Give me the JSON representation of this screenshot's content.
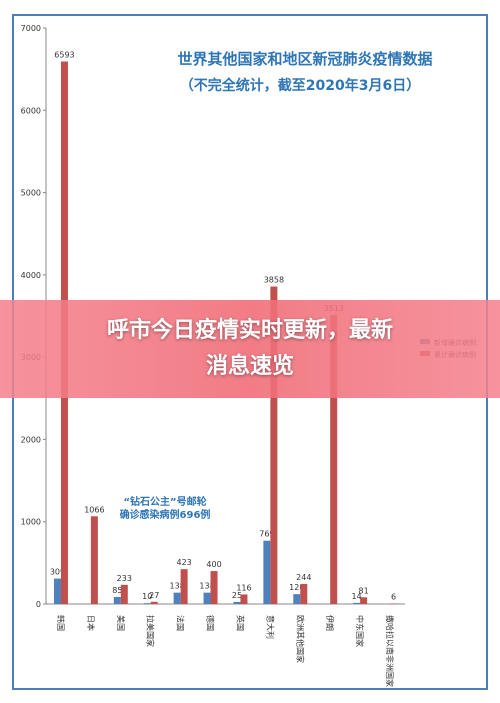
{
  "chart_data": {
    "type": "bar",
    "title": "世界其他国家和地区新冠肺炎疫情数据",
    "subtitle": "（不完全统计，截至2020年3月6日）",
    "annotation": "“钻石公主”号邮轮\n确诊感染病例696例",
    "categories": [
      "韩国",
      "日本",
      "美国",
      "拉美国家",
      "法国",
      "德国",
      "英国",
      "意大利",
      "欧洲其他国家",
      "伊朗",
      "中东国家",
      "撒哈拉以南非洲国家"
    ],
    "series": [
      {
        "name": "新增确诊病例",
        "color": "#4f81bd",
        "values": [
          309,
          null,
          85,
          10,
          138,
          138,
          25,
          769,
          120,
          null,
          14,
          null
        ]
      },
      {
        "name": "累计确诊病例",
        "color": "#c0504d",
        "values": [
          6593,
          1066,
          233,
          27,
          423,
          400,
          116,
          3858,
          244,
          3513,
          81,
          6
        ]
      }
    ],
    "ylim": [
      0,
      7000
    ],
    "yticks": [
      0,
      1000,
      2000,
      3000,
      4000,
      5000,
      6000,
      7000
    ],
    "grid": false
  },
  "banner": {
    "text": "呼市今日疫情实时更新，最新消息速览"
  }
}
